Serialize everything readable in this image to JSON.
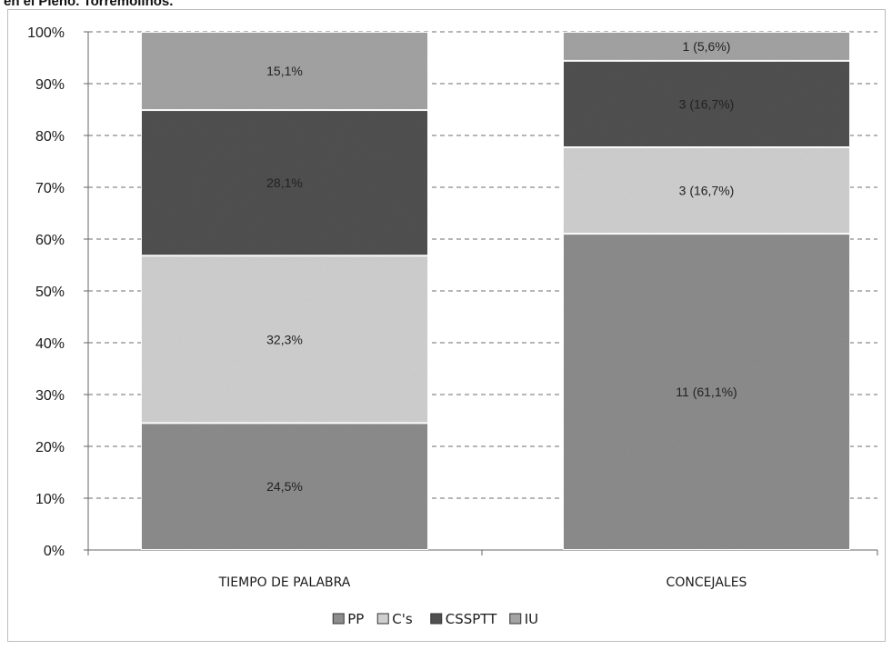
{
  "caption": "en el Pleno. Torremolinos.",
  "chart_data": {
    "type": "bar",
    "stacked": "percent",
    "categories": [
      "TIEMPO DE PALABRA",
      "CONCEJALES"
    ],
    "series": [
      {
        "name": "PP",
        "values": [
          24.5,
          61.1
        ],
        "labels": [
          "24,5%",
          "11 (61,1%)"
        ],
        "color": "#8c8c8c"
      },
      {
        "name": "C's",
        "values": [
          32.3,
          16.7
        ],
        "labels": [
          "32,3%",
          "3 (16,7%)"
        ],
        "color": "#cfcfcf"
      },
      {
        "name": "CSSPTT",
        "values": [
          28.1,
          16.7
        ],
        "labels": [
          "28,1%",
          "3 (16,7%)"
        ],
        "color": "#505050"
      },
      {
        "name": "IU",
        "values": [
          15.1,
          5.6
        ],
        "labels": [
          "15,1%",
          "1 (5,6%)"
        ],
        "color": "#a3a3a3"
      }
    ],
    "ylim": [
      0,
      100
    ],
    "y_ticks": [
      "0%",
      "10%",
      "20%",
      "30%",
      "40%",
      "50%",
      "60%",
      "70%",
      "80%",
      "90%",
      "100%"
    ],
    "grid": true,
    "legend_position": "bottom"
  }
}
